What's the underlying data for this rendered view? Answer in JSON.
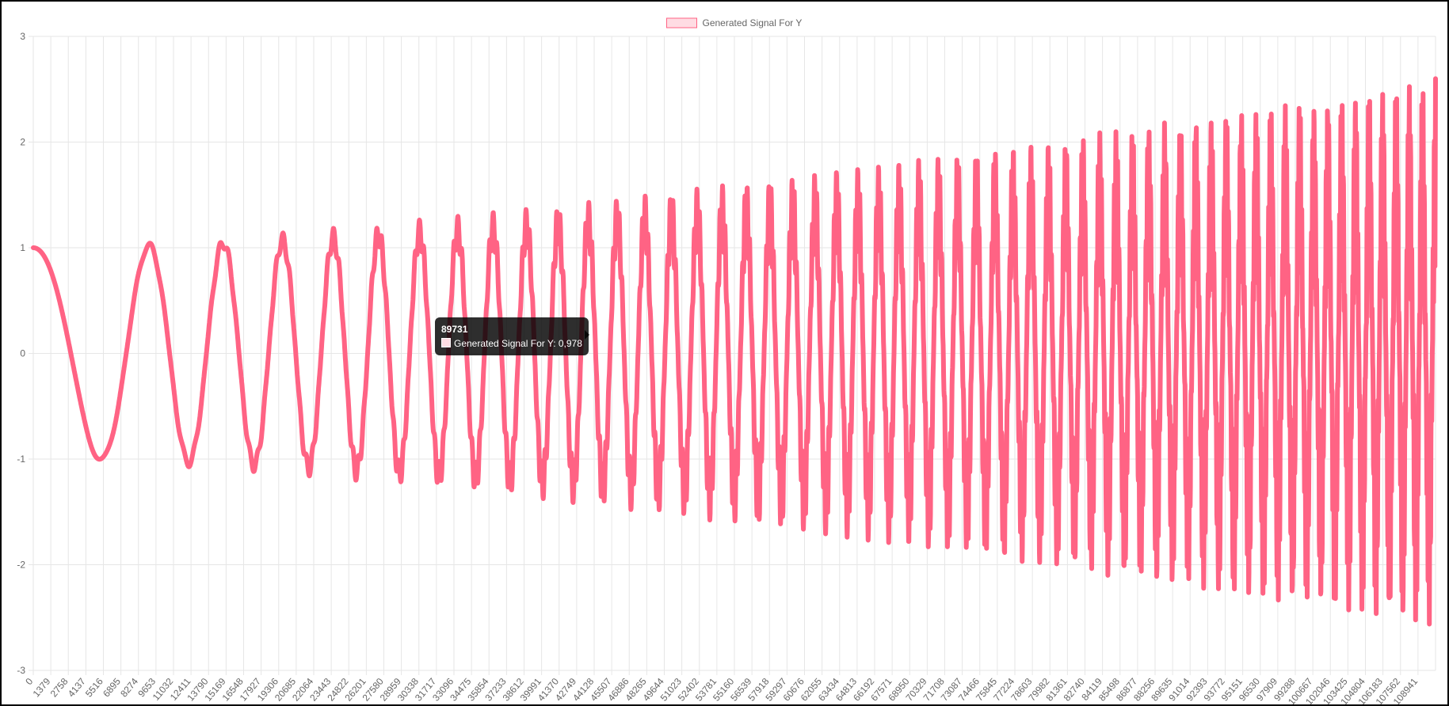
{
  "chart_data": {
    "type": "line",
    "legend": {
      "label": "Generated Signal For Y",
      "position": "top"
    },
    "series": [
      {
        "name": "Generated Signal For Y",
        "color": "#ff6384",
        "fill_color": "#ffdce3"
      }
    ],
    "ylim": [
      -3,
      3
    ],
    "y_ticks": [
      "3",
      "2",
      "1",
      "0",
      "-1",
      "-2",
      "-3"
    ],
    "x_range": [
      0,
      110320
    ],
    "x_ticks": [
      "0",
      "1379",
      "2758",
      "4137",
      "5516",
      "6895",
      "8274",
      "9653",
      "11032",
      "12411",
      "13790",
      "15169",
      "16548",
      "17927",
      "19306",
      "20685",
      "22064",
      "23443",
      "24822",
      "26201",
      "27580",
      "28959",
      "30338",
      "31717",
      "33096",
      "34475",
      "35854",
      "37233",
      "38612",
      "39991",
      "41370",
      "42749",
      "44128",
      "45507",
      "46886",
      "48265",
      "49644",
      "51023",
      "52402",
      "53781",
      "55160",
      "56539",
      "57918",
      "59297",
      "60676",
      "62055",
      "63434",
      "64813",
      "66192",
      "67571",
      "68950",
      "70329",
      "71708",
      "73087",
      "74466",
      "75845",
      "77224",
      "78603",
      "79982",
      "81361",
      "82740",
      "84119",
      "85498",
      "86877",
      "88256",
      "89635",
      "91014",
      "92393",
      "93772",
      "95151",
      "96530",
      "97909",
      "99288",
      "100667",
      "102046",
      "103425",
      "104804",
      "106183",
      "107562",
      "108941"
    ],
    "signal_shape": "oscillation with growing frequency and amplitude; early amplitude about 1, late peaks about 2.6",
    "tooltip": {
      "title": "89731",
      "label": "Generated Signal For Y: 0,978"
    },
    "grid": true
  }
}
